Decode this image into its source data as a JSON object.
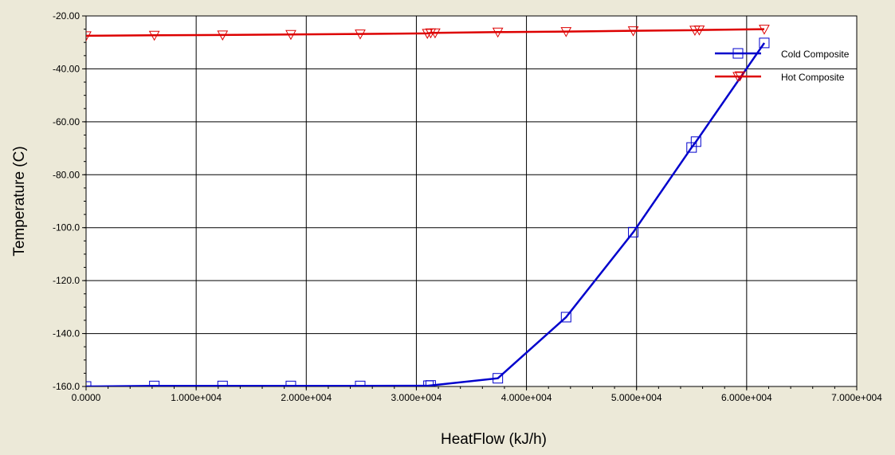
{
  "chart_data": {
    "type": "line",
    "xlabel": "HeatFlow (kJ/h)",
    "ylabel": "Temperature (C)",
    "xlim": [
      0,
      70000
    ],
    "ylim": [
      -160,
      -20
    ],
    "grid": true,
    "legend_placement": "top-right",
    "x_ticks": [
      {
        "value": 0,
        "label": "0.0000"
      },
      {
        "value": 10000,
        "label": "1.000e+004"
      },
      {
        "value": 20000,
        "label": "2.000e+004"
      },
      {
        "value": 30000,
        "label": "3.000e+004"
      },
      {
        "value": 40000,
        "label": "4.000e+004"
      },
      {
        "value": 50000,
        "label": "5.000e+004"
      },
      {
        "value": 60000,
        "label": "6.000e+004"
      },
      {
        "value": 70000,
        "label": "7.000e+004"
      }
    ],
    "y_ticks": [
      {
        "value": -20,
        "label": "-20.00"
      },
      {
        "value": -40,
        "label": "-40.00"
      },
      {
        "value": -60,
        "label": "-60.00"
      },
      {
        "value": -80,
        "label": "-80.00"
      },
      {
        "value": -100,
        "label": "-100.0"
      },
      {
        "value": -120,
        "label": "-120.0"
      },
      {
        "value": -140,
        "label": "-140.0"
      },
      {
        "value": -160,
        "label": "-160.0"
      }
    ],
    "series": [
      {
        "name": "Cold Composite",
        "color": "#0000cc",
        "marker": "square",
        "x": [
          0,
          6200,
          12400,
          18600,
          24900,
          31100,
          31300,
          37400,
          43600,
          49700,
          55000,
          55400,
          61600
        ],
        "y": [
          -160,
          -159.8,
          -159.8,
          -159.8,
          -159.8,
          -159.7,
          -159.6,
          -156.9,
          -133.8,
          -101.7,
          -69.7,
          -67.5,
          -30.2
        ]
      },
      {
        "name": "Hot Composite",
        "color": "#dd0000",
        "marker": "triangle-down",
        "x": [
          0,
          6200,
          12400,
          18600,
          24900,
          31000,
          31300,
          31700,
          37400,
          43600,
          49700,
          55300,
          55700,
          59400,
          61600
        ],
        "y": [
          -27.5,
          -27.3,
          -27.2,
          -27.0,
          -26.8,
          -26.6,
          -26.4,
          -26.4,
          -26.1,
          -25.9,
          -25.6,
          -25.4,
          -25.3,
          -42.6,
          -25.0
        ]
      }
    ]
  }
}
